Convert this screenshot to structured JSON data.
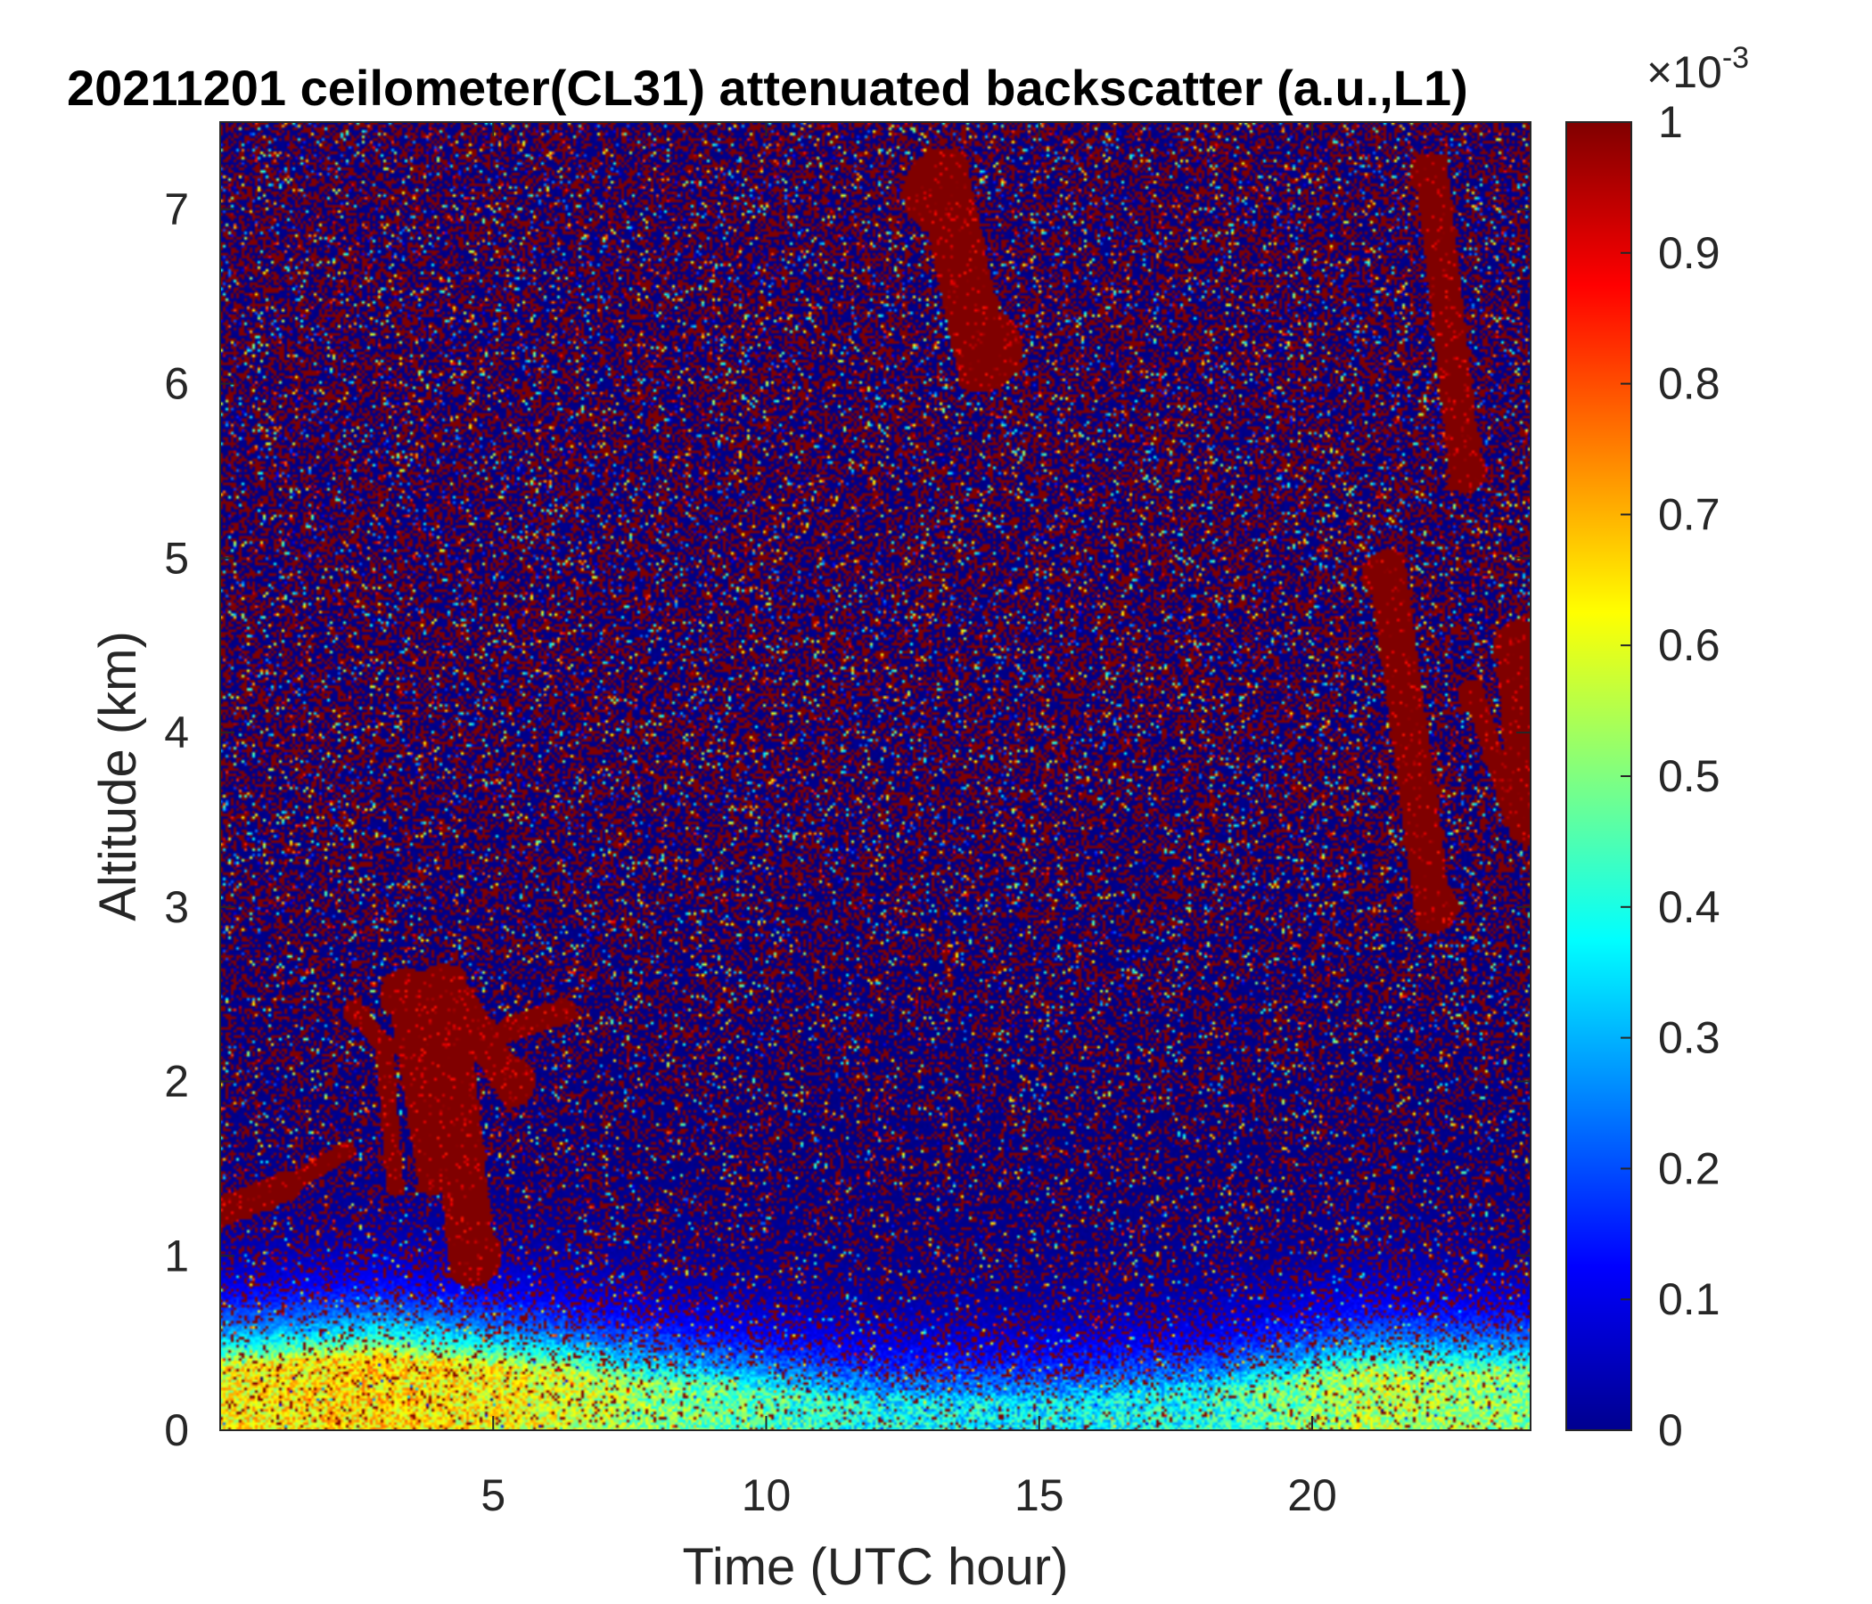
{
  "chart_data": {
    "type": "heatmap",
    "title": "20211201 ceilometer(CL31) attenuated backscatter (a.u.,L1)",
    "xlabel": "Time (UTC hour)",
    "ylabel": "Altitude (km)",
    "xlim": [
      0,
      24
    ],
    "ylim": [
      0,
      7.5
    ],
    "xticks": [
      5,
      10,
      15,
      20
    ],
    "yticks": [
      0,
      1,
      2,
      3,
      4,
      5,
      6,
      7
    ],
    "x_tick_labels": [
      "5",
      "10",
      "15",
      "20"
    ],
    "y_tick_labels": [
      "0",
      "1",
      "2",
      "3",
      "4",
      "5",
      "6",
      "7"
    ],
    "colorbar": {
      "colormap": "jet",
      "range": [
        0,
        1
      ],
      "multiplier": "×10",
      "exponent": "-3",
      "ticks": [
        0,
        0.1,
        0.2,
        0.3,
        0.4,
        0.5,
        0.6,
        0.7,
        0.8,
        0.9,
        1
      ],
      "tick_labels": [
        "0",
        "0.1",
        "0.2",
        "0.3",
        "0.4",
        "0.5",
        "0.6",
        "0.7",
        "0.8",
        "0.9",
        "1"
      ]
    },
    "features": {
      "boundary_layer": [
        {
          "time": 0,
          "altitude": 0.6,
          "level": 0.62
        },
        {
          "time": 3,
          "altitude": 0.7,
          "level": 0.66
        },
        {
          "time": 6,
          "altitude": 0.55,
          "level": 0.6
        },
        {
          "time": 8,
          "altitude": 0.45,
          "level": 0.5
        },
        {
          "time": 10,
          "altitude": 0.35,
          "level": 0.45
        },
        {
          "time": 12,
          "altitude": 0.25,
          "level": 0.38
        },
        {
          "time": 15,
          "altitude": 0.25,
          "level": 0.36
        },
        {
          "time": 18,
          "altitude": 0.35,
          "level": 0.4
        },
        {
          "time": 21,
          "altitude": 0.55,
          "level": 0.55
        },
        {
          "time": 24,
          "altitude": 0.55,
          "level": 0.5
        }
      ],
      "cloud_segments": [
        {
          "t0": 0,
          "z0": 1.25,
          "t1": 1.2,
          "z1": 1.4,
          "width_km": 0.18
        },
        {
          "t0": 1.2,
          "z0": 1.4,
          "t1": 2.3,
          "z1": 1.6,
          "width_km": 0.12
        },
        {
          "t0": 2.5,
          "z0": 2.4,
          "t1": 3.0,
          "z1": 2.2,
          "width_km": 0.15
        },
        {
          "t0": 3.0,
          "z0": 2.2,
          "t1": 3.2,
          "z1": 1.4,
          "width_km": 0.12
        },
        {
          "t0": 3.4,
          "z0": 2.5,
          "t1": 3.9,
          "z1": 1.5,
          "width_km": 0.3
        },
        {
          "t0": 4.1,
          "z0": 2.5,
          "t1": 4.6,
          "z1": 1.0,
          "width_km": 0.35
        },
        {
          "t0": 4.5,
          "z0": 2.4,
          "t1": 5.3,
          "z1": 2.0,
          "width_km": 0.3
        },
        {
          "t0": 5.3,
          "z0": 2.3,
          "t1": 6.3,
          "z1": 2.4,
          "width_km": 0.15
        },
        {
          "t0": 13.3,
          "z0": 7.1,
          "t1": 13.9,
          "z1": 6.2,
          "width_km": 0.5
        },
        {
          "t0": 22.2,
          "z0": 7.2,
          "t1": 22.8,
          "z1": 5.5,
          "width_km": 0.25
        },
        {
          "t0": 21.4,
          "z0": 4.9,
          "t1": 22.2,
          "z1": 3.0,
          "width_km": 0.3
        },
        {
          "t0": 23.0,
          "z0": 4.2,
          "t1": 23.6,
          "z1": 3.6,
          "width_km": 0.2
        },
        {
          "t0": 23.8,
          "z0": 4.5,
          "t1": 24.0,
          "z1": 3.5,
          "width_km": 0.3
        }
      ]
    }
  }
}
